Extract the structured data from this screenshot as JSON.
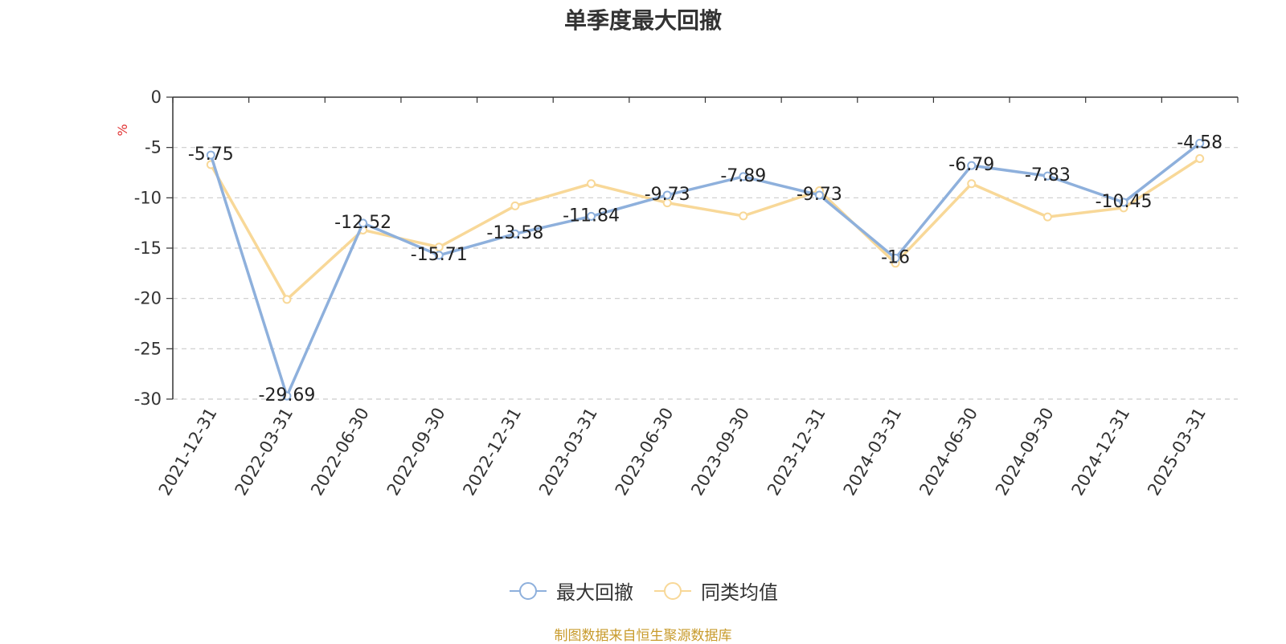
{
  "title": "单季度最大回撤",
  "source_note": "制图数据来自恒生聚源数据库",
  "chart_data": {
    "type": "line",
    "title": "单季度最大回撤",
    "ylabel": "%",
    "xlabel": "",
    "ylim": [
      -30,
      0
    ],
    "yticks": [
      0,
      -5,
      -10,
      -15,
      -20,
      -25,
      -30
    ],
    "grid": true,
    "legend_position": "bottom",
    "categories": [
      "2021-12-31",
      "2022-03-31",
      "2022-06-30",
      "2022-09-30",
      "2022-12-31",
      "2023-03-31",
      "2023-06-30",
      "2023-09-30",
      "2023-12-31",
      "2024-03-31",
      "2024-06-30",
      "2024-09-30",
      "2024-12-31",
      "2025-03-31"
    ],
    "series": [
      {
        "name": "最大回撤",
        "color": "#8eb0dc",
        "values": [
          -5.75,
          -29.69,
          -12.52,
          -15.71,
          -13.58,
          -11.84,
          -9.73,
          -7.89,
          -9.73,
          -16,
          -6.79,
          -7.83,
          -10.45,
          -4.58
        ],
        "labels": [
          "-5.75",
          "-29.69",
          "-12.52",
          "-15.71",
          "-13.58",
          "-11.84",
          "-9.73",
          "-7.89",
          "-9.73",
          "-16",
          "-6.79",
          "-7.83",
          "-10.45",
          "-4.58"
        ]
      },
      {
        "name": "同类均值",
        "color": "#f8d898",
        "values": [
          -6.7,
          -20.1,
          -13.2,
          -14.9,
          -10.8,
          -8.6,
          -10.5,
          -11.8,
          -9.3,
          -16.5,
          -8.6,
          -11.9,
          -11.0,
          -6.1
        ]
      }
    ]
  }
}
